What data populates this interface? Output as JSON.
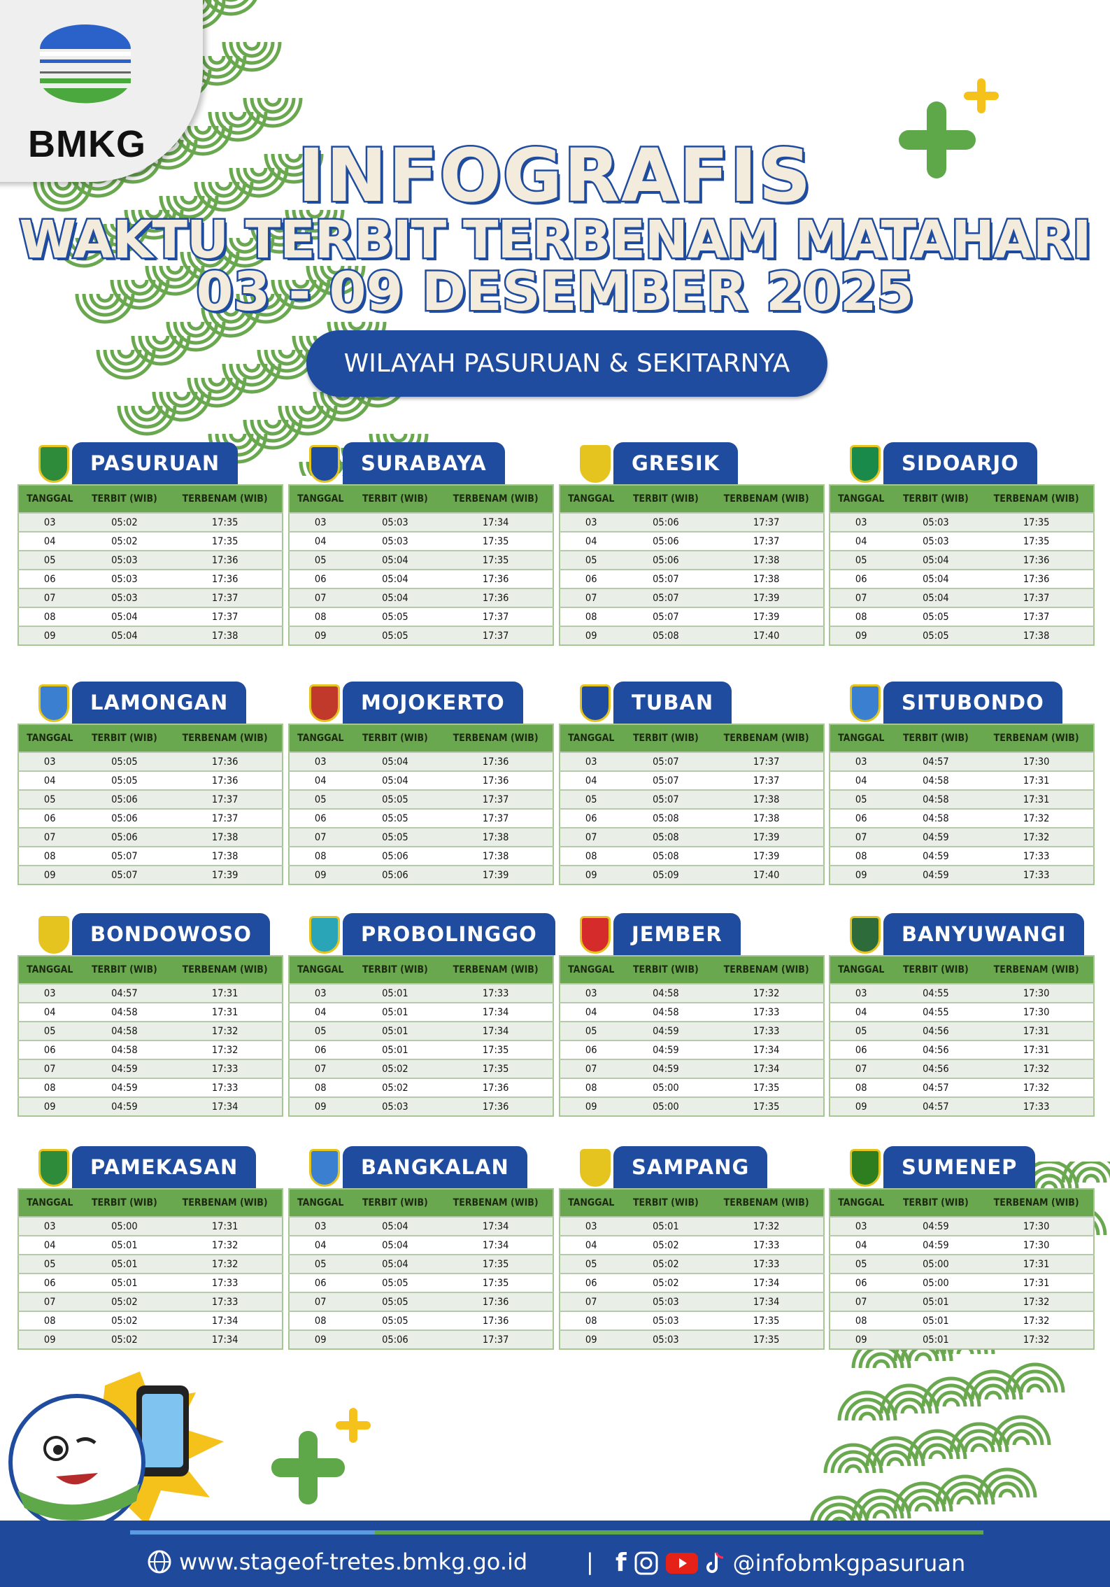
{
  "logo": {
    "text": "BMKG"
  },
  "header": {
    "title": "INFOGRAFIS",
    "subtitle": "WAKTU TERBIT TERBENAM MATAHARI",
    "date_range": "03 - 09 DESEMBER 2025",
    "region": "WILAYAH PASURUAN & SEKITARNYA"
  },
  "columns": [
    "TANGGAL",
    "TERBIT (WIB)",
    "TERBENAM (WIB)"
  ],
  "colors": {
    "brand_blue": "#1f4c9e",
    "table_green": "#6aa84f",
    "accent_yellow": "#f5c21b"
  },
  "cities": [
    {
      "name": "PASURUAN",
      "rows": [
        [
          "03",
          "05:02",
          "17:35"
        ],
        [
          "04",
          "05:02",
          "17:35"
        ],
        [
          "05",
          "05:03",
          "17:36"
        ],
        [
          "06",
          "05:03",
          "17:36"
        ],
        [
          "07",
          "05:03",
          "17:37"
        ],
        [
          "08",
          "05:04",
          "17:37"
        ],
        [
          "09",
          "05:04",
          "17:38"
        ]
      ]
    },
    {
      "name": "SURABAYA",
      "rows": [
        [
          "03",
          "05:03",
          "17:34"
        ],
        [
          "04",
          "05:03",
          "17:35"
        ],
        [
          "05",
          "05:04",
          "17:35"
        ],
        [
          "06",
          "05:04",
          "17:36"
        ],
        [
          "07",
          "05:04",
          "17:36"
        ],
        [
          "08",
          "05:05",
          "17:37"
        ],
        [
          "09",
          "05:05",
          "17:37"
        ]
      ]
    },
    {
      "name": "GRESIK",
      "rows": [
        [
          "03",
          "05:06",
          "17:37"
        ],
        [
          "04",
          "05:06",
          "17:37"
        ],
        [
          "05",
          "05:06",
          "17:38"
        ],
        [
          "06",
          "05:07",
          "17:38"
        ],
        [
          "07",
          "05:07",
          "17:39"
        ],
        [
          "08",
          "05:07",
          "17:39"
        ],
        [
          "09",
          "05:08",
          "17:40"
        ]
      ]
    },
    {
      "name": "SIDOARJO",
      "rows": [
        [
          "03",
          "05:03",
          "17:35"
        ],
        [
          "04",
          "05:03",
          "17:35"
        ],
        [
          "05",
          "05:04",
          "17:36"
        ],
        [
          "06",
          "05:04",
          "17:36"
        ],
        [
          "07",
          "05:04",
          "17:37"
        ],
        [
          "08",
          "05:05",
          "17:37"
        ],
        [
          "09",
          "05:05",
          "17:38"
        ]
      ]
    },
    {
      "name": "LAMONGAN",
      "rows": [
        [
          "03",
          "05:05",
          "17:36"
        ],
        [
          "04",
          "05:05",
          "17:36"
        ],
        [
          "05",
          "05:06",
          "17:37"
        ],
        [
          "06",
          "05:06",
          "17:37"
        ],
        [
          "07",
          "05:06",
          "17:38"
        ],
        [
          "08",
          "05:07",
          "17:38"
        ],
        [
          "09",
          "05:07",
          "17:39"
        ]
      ]
    },
    {
      "name": "MOJOKERTO",
      "rows": [
        [
          "03",
          "05:04",
          "17:36"
        ],
        [
          "04",
          "05:04",
          "17:36"
        ],
        [
          "05",
          "05:05",
          "17:37"
        ],
        [
          "06",
          "05:05",
          "17:37"
        ],
        [
          "07",
          "05:05",
          "17:38"
        ],
        [
          "08",
          "05:06",
          "17:38"
        ],
        [
          "09",
          "05:06",
          "17:39"
        ]
      ]
    },
    {
      "name": "TUBAN",
      "rows": [
        [
          "03",
          "05:07",
          "17:37"
        ],
        [
          "04",
          "05:07",
          "17:37"
        ],
        [
          "05",
          "05:07",
          "17:38"
        ],
        [
          "06",
          "05:08",
          "17:38"
        ],
        [
          "07",
          "05:08",
          "17:39"
        ],
        [
          "08",
          "05:08",
          "17:39"
        ],
        [
          "09",
          "05:09",
          "17:40"
        ]
      ]
    },
    {
      "name": "SITUBONDO",
      "rows": [
        [
          "03",
          "04:57",
          "17:30"
        ],
        [
          "04",
          "04:58",
          "17:31"
        ],
        [
          "05",
          "04:58",
          "17:31"
        ],
        [
          "06",
          "04:58",
          "17:32"
        ],
        [
          "07",
          "04:59",
          "17:32"
        ],
        [
          "08",
          "04:59",
          "17:33"
        ],
        [
          "09",
          "04:59",
          "17:33"
        ]
      ]
    },
    {
      "name": "BONDOWOSO",
      "rows": [
        [
          "03",
          "04:57",
          "17:31"
        ],
        [
          "04",
          "04:58",
          "17:31"
        ],
        [
          "05",
          "04:58",
          "17:32"
        ],
        [
          "06",
          "04:58",
          "17:32"
        ],
        [
          "07",
          "04:59",
          "17:33"
        ],
        [
          "08",
          "04:59",
          "17:33"
        ],
        [
          "09",
          "04:59",
          "17:34"
        ]
      ]
    },
    {
      "name": "PROBOLINGGO",
      "rows": [
        [
          "03",
          "05:01",
          "17:33"
        ],
        [
          "04",
          "05:01",
          "17:34"
        ],
        [
          "05",
          "05:01",
          "17:34"
        ],
        [
          "06",
          "05:01",
          "17:35"
        ],
        [
          "07",
          "05:02",
          "17:35"
        ],
        [
          "08",
          "05:02",
          "17:36"
        ],
        [
          "09",
          "05:03",
          "17:36"
        ]
      ]
    },
    {
      "name": "JEMBER",
      "rows": [
        [
          "03",
          "04:58",
          "17:32"
        ],
        [
          "04",
          "04:58",
          "17:33"
        ],
        [
          "05",
          "04:59",
          "17:33"
        ],
        [
          "06",
          "04:59",
          "17:34"
        ],
        [
          "07",
          "04:59",
          "17:34"
        ],
        [
          "08",
          "05:00",
          "17:35"
        ],
        [
          "09",
          "05:00",
          "17:35"
        ]
      ]
    },
    {
      "name": "BANYUWANGI",
      "rows": [
        [
          "03",
          "04:55",
          "17:30"
        ],
        [
          "04",
          "04:55",
          "17:30"
        ],
        [
          "05",
          "04:56",
          "17:31"
        ],
        [
          "06",
          "04:56",
          "17:31"
        ],
        [
          "07",
          "04:56",
          "17:32"
        ],
        [
          "08",
          "04:57",
          "17:32"
        ],
        [
          "09",
          "04:57",
          "17:33"
        ]
      ]
    },
    {
      "name": "PAMEKASAN",
      "rows": [
        [
          "03",
          "05:00",
          "17:31"
        ],
        [
          "04",
          "05:01",
          "17:32"
        ],
        [
          "05",
          "05:01",
          "17:32"
        ],
        [
          "06",
          "05:01",
          "17:33"
        ],
        [
          "07",
          "05:02",
          "17:33"
        ],
        [
          "08",
          "05:02",
          "17:34"
        ],
        [
          "09",
          "05:02",
          "17:34"
        ]
      ]
    },
    {
      "name": "BANGKALAN",
      "rows": [
        [
          "03",
          "05:04",
          "17:34"
        ],
        [
          "04",
          "05:04",
          "17:34"
        ],
        [
          "05",
          "05:04",
          "17:35"
        ],
        [
          "06",
          "05:05",
          "17:35"
        ],
        [
          "07",
          "05:05",
          "17:36"
        ],
        [
          "08",
          "05:05",
          "17:36"
        ],
        [
          "09",
          "05:06",
          "17:37"
        ]
      ]
    },
    {
      "name": "SAMPANG",
      "rows": [
        [
          "03",
          "05:01",
          "17:32"
        ],
        [
          "04",
          "05:02",
          "17:33"
        ],
        [
          "05",
          "05:02",
          "17:33"
        ],
        [
          "06",
          "05:02",
          "17:34"
        ],
        [
          "07",
          "05:03",
          "17:34"
        ],
        [
          "08",
          "05:03",
          "17:35"
        ],
        [
          "09",
          "05:03",
          "17:35"
        ]
      ]
    },
    {
      "name": "SUMENEP",
      "rows": [
        [
          "03",
          "04:59",
          "17:30"
        ],
        [
          "04",
          "04:59",
          "17:30"
        ],
        [
          "05",
          "05:00",
          "17:31"
        ],
        [
          "06",
          "05:00",
          "17:31"
        ],
        [
          "07",
          "05:01",
          "17:32"
        ],
        [
          "08",
          "05:01",
          "17:32"
        ],
        [
          "09",
          "05:01",
          "17:32"
        ]
      ]
    }
  ],
  "footer": {
    "website": "www.stageof-tretes.bmkg.go.id",
    "separator": "|",
    "social_handle": "@infobmkgpasuruan",
    "icons": [
      "globe-icon",
      "facebook-icon",
      "instagram-icon",
      "youtube-icon",
      "tiktok-icon"
    ]
  }
}
